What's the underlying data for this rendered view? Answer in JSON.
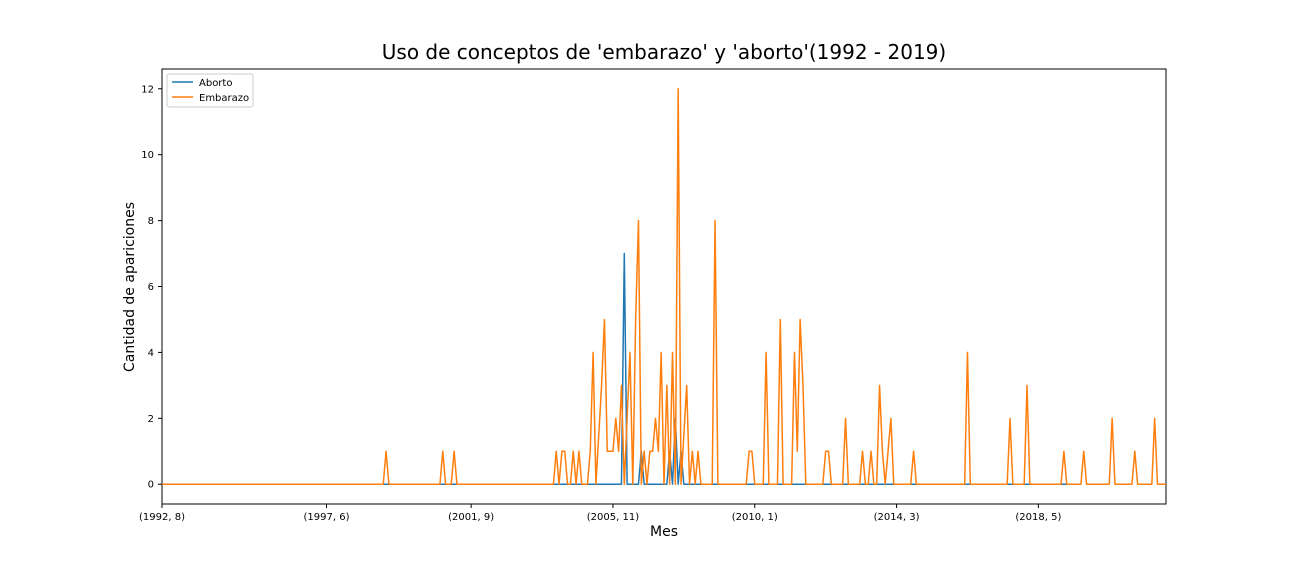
{
  "chart_data": {
    "type": "line",
    "title": "Uso de conceptos de 'embarazo' y 'aborto'(1992 - 2019)",
    "xlabel": "Mes",
    "ylabel": "Cantidad de apariciones",
    "x_start_label": "(1992, 8)",
    "xticks": [
      "(1992, 8)",
      "(1997, 6)",
      "(2001, 9)",
      "(2005, 11)",
      "(2010, 1)",
      "(2014, 3)",
      "(2018, 5)"
    ],
    "yticks": [
      "0",
      "2",
      "4",
      "6",
      "8",
      "10",
      "12"
    ],
    "ylim": [
      -0.6,
      12.6
    ],
    "grid": false,
    "legend": "upper left",
    "colors": {
      "Aborto": "#1f77b4",
      "Embarazo": "#ff7f0e"
    },
    "series": [
      {
        "name": "Aborto",
        "points": [
          [
            "(1992, 8)",
            0
          ],
          [
            "(2006, 2)",
            0
          ],
          [
            "(2006, 3)",
            7
          ],
          [
            "(2006, 4)",
            0
          ],
          [
            "(2006, 8)",
            0
          ],
          [
            "(2006, 9)",
            1
          ],
          [
            "(2006, 10)",
            0
          ],
          [
            "(2007, 6)",
            0
          ],
          [
            "(2007, 7)",
            1
          ],
          [
            "(2007, 8)",
            0
          ],
          [
            "(2007, 9)",
            2
          ],
          [
            "(2007, 10)",
            0
          ],
          [
            "(2007, 11)",
            1
          ],
          [
            "(2007, 12)",
            0
          ],
          [
            "(2019, 8)",
            0
          ]
        ]
      },
      {
        "name": "Embarazo",
        "points": [
          [
            "(1992, 8)",
            0
          ],
          [
            "(1999, 2)",
            0
          ],
          [
            "(1999, 3)",
            1
          ],
          [
            "(1999, 4)",
            0
          ],
          [
            "(2000, 10)",
            0
          ],
          [
            "(2000, 11)",
            1
          ],
          [
            "(2000, 12)",
            0
          ],
          [
            "(2001, 2)",
            0
          ],
          [
            "(2001, 3)",
            1
          ],
          [
            "(2001, 4)",
            0
          ],
          [
            "(2004, 2)",
            0
          ],
          [
            "(2004, 3)",
            1
          ],
          [
            "(2004, 4)",
            0
          ],
          [
            "(2004, 5)",
            1
          ],
          [
            "(2004, 6)",
            1
          ],
          [
            "(2004, 7)",
            0
          ],
          [
            "(2004, 8)",
            0
          ],
          [
            "(2004, 9)",
            1
          ],
          [
            "(2004, 10)",
            0
          ],
          [
            "(2004, 11)",
            1
          ],
          [
            "(2004, 12)",
            0
          ],
          [
            "(2005, 2)",
            0
          ],
          [
            "(2005, 3)",
            1
          ],
          [
            "(2005, 4)",
            4
          ],
          [
            "(2005, 5)",
            0
          ],
          [
            "(2005, 7)",
            3
          ],
          [
            "(2005, 8)",
            5
          ],
          [
            "(2005, 9)",
            1
          ],
          [
            "(2005, 10)",
            1
          ],
          [
            "(2005, 11)",
            1
          ],
          [
            "(2005, 12)",
            2
          ],
          [
            "(2006, 1)",
            1
          ],
          [
            "(2006, 2)",
            3
          ],
          [
            "(2006, 3)",
            0
          ],
          [
            "(2006, 5)",
            4
          ],
          [
            "(2006, 6)",
            0
          ],
          [
            "(2006, 7)",
            5
          ],
          [
            "(2006, 8)",
            8
          ],
          [
            "(2006, 9)",
            0
          ],
          [
            "(2006, 10)",
            1
          ],
          [
            "(2006, 11)",
            0
          ],
          [
            "(2006, 12)",
            1
          ],
          [
            "(2007, 1)",
            1
          ],
          [
            "(2007, 2)",
            2
          ],
          [
            "(2007, 3)",
            1
          ],
          [
            "(2007, 4)",
            4
          ],
          [
            "(2007, 5)",
            0
          ],
          [
            "(2007, 6)",
            3
          ],
          [
            "(2007, 7)",
            0
          ],
          [
            "(2007, 8)",
            4
          ],
          [
            "(2007, 9)",
            0
          ],
          [
            "(2007, 10)",
            12
          ],
          [
            "(2007, 11)",
            0
          ],
          [
            "(2008, 1)",
            3
          ],
          [
            "(2008, 2)",
            0
          ],
          [
            "(2008, 3)",
            1
          ],
          [
            "(2008, 4)",
            0
          ],
          [
            "(2008, 5)",
            1
          ],
          [
            "(2008, 6)",
            0
          ],
          [
            "(2008, 10)",
            0
          ],
          [
            "(2008, 11)",
            8
          ],
          [
            "(2008, 12)",
            0
          ],
          [
            "(2009, 10)",
            0
          ],
          [
            "(2009, 11)",
            1
          ],
          [
            "(2009, 12)",
            1
          ],
          [
            "(2010, 1)",
            0
          ],
          [
            "(2010, 4)",
            0
          ],
          [
            "(2010, 5)",
            4
          ],
          [
            "(2010, 6)",
            0
          ],
          [
            "(2010, 9)",
            0
          ],
          [
            "(2010, 10)",
            5
          ],
          [
            "(2010, 11)",
            0
          ],
          [
            "(2011, 2)",
            0
          ],
          [
            "(2011, 3)",
            4
          ],
          [
            "(2011, 4)",
            1
          ],
          [
            "(2011, 5)",
            5
          ],
          [
            "(2011, 6)",
            3
          ],
          [
            "(2011, 7)",
            0
          ],
          [
            "(2012, 1)",
            0
          ],
          [
            "(2012, 2)",
            1
          ],
          [
            "(2012, 3)",
            1
          ],
          [
            "(2012, 4)",
            0
          ],
          [
            "(2012, 8)",
            0
          ],
          [
            "(2012, 9)",
            2
          ],
          [
            "(2012, 10)",
            0
          ],
          [
            "(2013, 2)",
            0
          ],
          [
            "(2013, 3)",
            1
          ],
          [
            "(2013, 4)",
            0
          ],
          [
            "(2013, 5)",
            0
          ],
          [
            "(2013, 6)",
            1
          ],
          [
            "(2013, 7)",
            0
          ],
          [
            "(2013, 8)",
            0
          ],
          [
            "(2013, 9)",
            3
          ],
          [
            "(2013, 10)",
            1
          ],
          [
            "(2013, 11)",
            0
          ],
          [
            "(2014, 1)",
            2
          ],
          [
            "(2014, 2)",
            0
          ],
          [
            "(2014, 8)",
            0
          ],
          [
            "(2014, 9)",
            1
          ],
          [
            "(2014, 10)",
            0
          ],
          [
            "(2016, 3)",
            0
          ],
          [
            "(2016, 4)",
            4
          ],
          [
            "(2016, 5)",
            0
          ],
          [
            "(2017, 6)",
            0
          ],
          [
            "(2017, 7)",
            2
          ],
          [
            "(2017, 8)",
            0
          ],
          [
            "(2017, 12)",
            0
          ],
          [
            "(2018, 1)",
            3
          ],
          [
            "(2018, 2)",
            0
          ],
          [
            "(2019, 1)",
            0
          ],
          [
            "(2019, 2)",
            1
          ],
          [
            "(2019, 3)",
            0
          ],
          [
            "(2019, 8)",
            0
          ],
          [
            "(2019, 9)",
            1
          ],
          [
            "(2019, 10)",
            0
          ],
          [
            "(2020, 6)",
            0
          ],
          [
            "(2020, 7)",
            2
          ],
          [
            "(2020, 8)",
            0
          ],
          [
            "(2021, 2)",
            0
          ],
          [
            "(2021, 3)",
            1
          ],
          [
            "(2021, 4)",
            0
          ],
          [
            "(2021, 9)",
            0
          ],
          [
            "(2021, 10)",
            2
          ],
          [
            "(2021, 11)",
            0
          ],
          [
            "(2022, 2)",
            0
          ]
        ]
      }
    ]
  }
}
